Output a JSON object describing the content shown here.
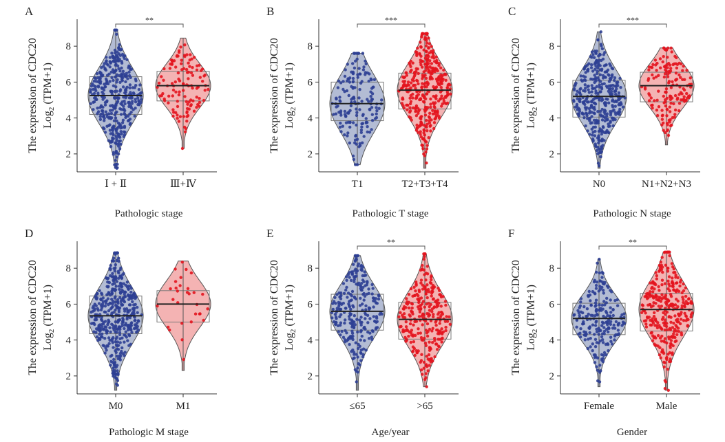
{
  "figure": {
    "colors": {
      "group1_fill": "#a6b0cc",
      "group1_point": "#2e3f94",
      "group2_fill": "#f2a6a6",
      "group2_point": "#e3141e",
      "outline": "#555555"
    }
  },
  "chart_data": [
    {
      "panel_label": "A",
      "type": "violin",
      "ylabel_line1": "The expression of CDC20",
      "ylabel_line2": "Log",
      "ylabel_sub": "2",
      "ylabel_tail": " (TPM+1)",
      "xlabel": "Pathologic stage",
      "yticks": [
        2,
        4,
        6,
        8
      ],
      "ylim": [
        1,
        9.5
      ],
      "significance": "**",
      "groups": [
        {
          "name": "Ⅰ + Ⅱ",
          "q1": 4.2,
          "median": 5.25,
          "q3": 6.3,
          "min": 1.2,
          "max": 8.9,
          "n": 400
        },
        {
          "name": "Ⅲ+Ⅳ",
          "q1": 4.95,
          "median": 5.8,
          "q3": 6.6,
          "min": 2.3,
          "max": 8.45,
          "n": 120
        }
      ]
    },
    {
      "panel_label": "B",
      "type": "violin",
      "ylabel_line1": "The expression of CDC20",
      "ylabel_line2": "Log",
      "ylabel_sub": "2",
      "ylabel_tail": " (TPM+1)",
      "xlabel": "Pathologic T stage",
      "yticks": [
        2,
        4,
        6,
        8
      ],
      "ylim": [
        1,
        9.5
      ],
      "significance": "***",
      "groups": [
        {
          "name": "T1",
          "q1": 3.85,
          "median": 4.8,
          "q3": 6.0,
          "min": 1.4,
          "max": 7.6,
          "n": 170
        },
        {
          "name": "T2+T3+T4",
          "q1": 4.5,
          "median": 5.55,
          "q3": 6.5,
          "min": 1.2,
          "max": 8.7,
          "n": 380
        }
      ]
    },
    {
      "panel_label": "C",
      "type": "violin",
      "ylabel_line1": "The expression of CDC20",
      "ylabel_line2": "Log",
      "ylabel_sub": "2",
      "ylabel_tail": " (TPM+1)",
      "xlabel": "Pathologic N stage",
      "yticks": [
        2,
        4,
        6,
        8
      ],
      "ylim": [
        1,
        9.5
      ],
      "significance": "***",
      "groups": [
        {
          "name": "N0",
          "q1": 4.05,
          "median": 5.2,
          "q3": 6.1,
          "min": 1.2,
          "max": 8.8,
          "n": 380
        },
        {
          "name": "N1+N2+N3",
          "q1": 4.9,
          "median": 5.8,
          "q3": 6.55,
          "min": 2.5,
          "max": 7.9,
          "n": 160
        }
      ]
    },
    {
      "panel_label": "D",
      "type": "violin",
      "ylabel_line1": "The expression of CDC20",
      "ylabel_line2": "Log",
      "ylabel_sub": "2",
      "ylabel_tail": " (TPM+1)",
      "xlabel": "Pathologic M stage",
      "yticks": [
        2,
        4,
        6,
        8
      ],
      "ylim": [
        1,
        9.5
      ],
      "significance": "",
      "groups": [
        {
          "name": "M0",
          "q1": 4.35,
          "median": 5.35,
          "q3": 6.45,
          "min": 1.2,
          "max": 8.85,
          "n": 460
        },
        {
          "name": "M1",
          "q1": 5.0,
          "median": 6.0,
          "q3": 6.75,
          "min": 2.3,
          "max": 8.4,
          "n": 30
        }
      ]
    },
    {
      "panel_label": "E",
      "type": "violin",
      "ylabel_line1": "The expression of CDC20",
      "ylabel_line2": "Log",
      "ylabel_sub": "2",
      "ylabel_tail": " (TPM+1)",
      "xlabel": "Age/year",
      "yticks": [
        2,
        4,
        6,
        8
      ],
      "ylim": [
        1,
        9.5
      ],
      "significance": "**",
      "groups": [
        {
          "name": "≤65",
          "q1": 4.55,
          "median": 5.6,
          "q3": 6.55,
          "min": 1.2,
          "max": 8.7,
          "n": 260
        },
        {
          "name": ">65",
          "q1": 4.05,
          "median": 5.15,
          "q3": 6.1,
          "min": 1.4,
          "max": 8.8,
          "n": 280
        }
      ]
    },
    {
      "panel_label": "F",
      "type": "violin",
      "ylabel_line1": "The expression of CDC20",
      "ylabel_line2": "Log",
      "ylabel_sub": "2",
      "ylabel_tail": " (TPM+1)",
      "xlabel": "Gender",
      "yticks": [
        2,
        4,
        6,
        8
      ],
      "ylim": [
        1,
        9.5
      ],
      "significance": "**",
      "groups": [
        {
          "name": "Female",
          "q1": 4.3,
          "median": 5.2,
          "q3": 6.05,
          "min": 1.4,
          "max": 8.5,
          "n": 220
        },
        {
          "name": "Male",
          "q1": 4.5,
          "median": 5.7,
          "q3": 6.6,
          "min": 1.2,
          "max": 8.9,
          "n": 320
        }
      ]
    }
  ]
}
